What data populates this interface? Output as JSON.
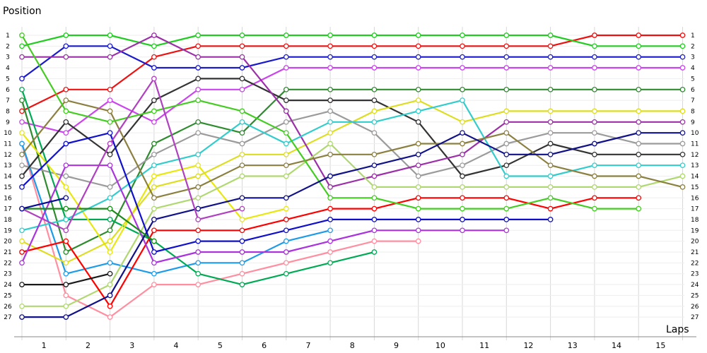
{
  "chart_data": {
    "type": "line",
    "ylabel": "Position",
    "xlabel": "Laps",
    "x_ticks": [
      "1",
      "2",
      "3",
      "4",
      "5",
      "6",
      "7",
      "8",
      "9",
      "10",
      "11",
      "12",
      "13",
      "14",
      "15"
    ],
    "y_ticks": [
      "1",
      "2",
      "3",
      "4",
      "5",
      "6",
      "7",
      "8",
      "9",
      "10",
      "11",
      "12",
      "13",
      "14",
      "15",
      "16",
      "17",
      "18",
      "19",
      "20",
      "21",
      "22",
      "23",
      "24",
      "25",
      "26",
      "27"
    ],
    "x_range": [
      0,
      15.5
    ],
    "y_range": [
      1,
      27
    ],
    "y_inverted": true,
    "grid": true,
    "series": [
      {
        "color": "#ee1111",
        "points": [
          [
            0,
            8
          ],
          [
            1,
            6
          ],
          [
            2,
            6
          ],
          [
            3,
            3
          ],
          [
            4,
            2
          ],
          [
            5,
            2
          ],
          [
            6,
            2
          ],
          [
            7,
            2
          ],
          [
            8,
            2
          ],
          [
            9,
            2
          ],
          [
            10,
            2
          ],
          [
            11,
            2
          ],
          [
            12,
            2
          ],
          [
            13,
            1
          ],
          [
            14,
            1
          ],
          [
            15,
            1
          ]
        ]
      },
      {
        "color": "#22cc22",
        "points": [
          [
            0,
            2
          ],
          [
            1,
            1
          ],
          [
            2,
            1
          ],
          [
            3,
            2
          ],
          [
            4,
            1
          ],
          [
            5,
            1
          ],
          [
            6,
            1
          ],
          [
            7,
            1
          ],
          [
            8,
            1
          ],
          [
            9,
            1
          ],
          [
            10,
            1
          ],
          [
            11,
            1
          ],
          [
            12,
            1
          ],
          [
            13,
            2
          ],
          [
            14,
            2
          ],
          [
            15,
            2
          ]
        ]
      },
      {
        "color": "#1a1acc",
        "points": [
          [
            0,
            5
          ],
          [
            1,
            2
          ],
          [
            2,
            2
          ],
          [
            3,
            4
          ],
          [
            4,
            4
          ],
          [
            5,
            4
          ],
          [
            6,
            3
          ],
          [
            7,
            3
          ],
          [
            8,
            3
          ],
          [
            9,
            3
          ],
          [
            10,
            3
          ],
          [
            11,
            3
          ],
          [
            12,
            3
          ],
          [
            13,
            3
          ],
          [
            14,
            3
          ],
          [
            15,
            3
          ]
        ]
      },
      {
        "color": "#cc44ee",
        "points": [
          [
            0,
            9
          ],
          [
            1,
            10
          ],
          [
            2,
            7
          ],
          [
            3,
            9
          ],
          [
            4,
            6
          ],
          [
            5,
            6
          ],
          [
            6,
            4
          ],
          [
            7,
            4
          ],
          [
            8,
            4
          ],
          [
            9,
            4
          ],
          [
            10,
            4
          ],
          [
            11,
            4
          ],
          [
            12,
            4
          ],
          [
            13,
            4
          ],
          [
            14,
            4
          ],
          [
            15,
            4
          ]
        ]
      },
      {
        "color": "#ff8fa0",
        "points": [
          [
            0,
            11
          ],
          [
            1,
            25
          ],
          [
            2,
            27
          ],
          [
            3,
            24
          ],
          [
            4,
            24
          ],
          [
            5,
            23
          ],
          [
            6,
            22
          ],
          [
            7,
            21
          ],
          [
            8,
            20
          ],
          [
            9,
            20
          ]
        ]
      },
      {
        "color": "#2e8b2e",
        "points": [
          [
            0,
            7
          ],
          [
            1,
            21
          ],
          [
            2,
            19
          ],
          [
            3,
            11
          ],
          [
            4,
            9
          ],
          [
            5,
            10
          ],
          [
            6,
            6
          ],
          [
            7,
            6
          ],
          [
            8,
            6
          ],
          [
            9,
            6
          ],
          [
            10,
            6
          ],
          [
            11,
            6
          ],
          [
            12,
            6
          ],
          [
            13,
            6
          ],
          [
            14,
            6
          ],
          [
            15,
            6
          ]
        ]
      },
      {
        "color": "#1e9be8",
        "points": [
          [
            0,
            11
          ],
          [
            1,
            23
          ],
          [
            2,
            22
          ],
          [
            3,
            23
          ],
          [
            4,
            22
          ],
          [
            5,
            22
          ],
          [
            6,
            20
          ],
          [
            7,
            19
          ]
        ]
      },
      {
        "color": "#9b9b9b",
        "points": [
          [
            0,
            13
          ],
          [
            1,
            14
          ],
          [
            2,
            15
          ],
          [
            3,
            12
          ],
          [
            4,
            10
          ],
          [
            5,
            11
          ],
          [
            6,
            9
          ],
          [
            7,
            8
          ],
          [
            8,
            10
          ],
          [
            9,
            14
          ],
          [
            10,
            13
          ],
          [
            11,
            11
          ],
          [
            12,
            10
          ],
          [
            13,
            10
          ],
          [
            14,
            11
          ],
          [
            15,
            11
          ]
        ]
      },
      {
        "color": "#00aa55",
        "points": [
          [
            0,
            6
          ],
          [
            1,
            18
          ],
          [
            2,
            18
          ],
          [
            3,
            20
          ],
          [
            4,
            23
          ],
          [
            5,
            24
          ],
          [
            6,
            23
          ],
          [
            7,
            22
          ],
          [
            8,
            21
          ]
        ]
      },
      {
        "color": "#333333",
        "points": [
          [
            0,
            14
          ],
          [
            1,
            9
          ],
          [
            2,
            12
          ],
          [
            3,
            7
          ],
          [
            4,
            5
          ],
          [
            5,
            5
          ],
          [
            6,
            7
          ],
          [
            7,
            7
          ],
          [
            8,
            7
          ],
          [
            9,
            9
          ],
          [
            10,
            14
          ],
          [
            11,
            13
          ],
          [
            12,
            11
          ],
          [
            13,
            12
          ],
          [
            14,
            12
          ],
          [
            15,
            12
          ]
        ]
      },
      {
        "color": "#e8e810",
        "points": [
          [
            0,
            10
          ],
          [
            1,
            15
          ],
          [
            2,
            21
          ],
          [
            3,
            14
          ],
          [
            4,
            13
          ],
          [
            5,
            18
          ],
          [
            6,
            17
          ]
        ]
      },
      {
        "color": "#dddd22",
        "points": [
          [
            0,
            20
          ],
          [
            1,
            22
          ],
          [
            2,
            20
          ],
          [
            3,
            15
          ],
          [
            4,
            14
          ],
          [
            5,
            12
          ],
          [
            6,
            12
          ],
          [
            7,
            10
          ],
          [
            8,
            8
          ],
          [
            9,
            7
          ],
          [
            10,
            9
          ],
          [
            11,
            8
          ],
          [
            12,
            8
          ],
          [
            13,
            8
          ],
          [
            14,
            8
          ],
          [
            15,
            8
          ]
        ]
      },
      {
        "color": "#9b30a8",
        "points": [
          [
            0,
            3
          ],
          [
            1,
            3
          ],
          [
            2,
            3
          ],
          [
            3,
            1
          ],
          [
            4,
            3
          ],
          [
            5,
            3
          ],
          [
            6,
            8
          ],
          [
            7,
            15
          ],
          [
            8,
            14
          ],
          [
            9,
            13
          ],
          [
            10,
            12
          ],
          [
            11,
            9
          ],
          [
            12,
            9
          ],
          [
            13,
            9
          ],
          [
            14,
            9
          ],
          [
            15,
            9
          ]
        ]
      },
      {
        "color": "#33cccc",
        "points": [
          [
            0,
            19
          ],
          [
            1,
            18
          ],
          [
            2,
            16
          ],
          [
            3,
            13
          ],
          [
            4,
            12
          ],
          [
            5,
            9
          ],
          [
            6,
            11
          ],
          [
            7,
            9
          ],
          [
            8,
            9
          ],
          [
            9,
            8
          ],
          [
            10,
            7
          ],
          [
            11,
            14
          ],
          [
            12,
            14
          ],
          [
            13,
            13
          ],
          [
            14,
            13
          ],
          [
            15,
            13
          ]
        ]
      },
      {
        "color": "#b0d870",
        "points": [
          [
            0,
            26
          ],
          [
            1,
            26
          ],
          [
            2,
            24
          ],
          [
            3,
            17
          ],
          [
            4,
            16
          ],
          [
            5,
            14
          ],
          [
            6,
            14
          ],
          [
            7,
            11
          ],
          [
            8,
            15
          ],
          [
            9,
            15
          ],
          [
            10,
            15
          ],
          [
            11,
            15
          ],
          [
            12,
            15
          ],
          [
            13,
            15
          ],
          [
            14,
            15
          ],
          [
            15,
            14
          ]
        ]
      },
      {
        "color": "#8b8040",
        "points": [
          [
            0,
            12
          ],
          [
            1,
            7
          ],
          [
            2,
            8
          ],
          [
            3,
            16
          ],
          [
            4,
            15
          ],
          [
            5,
            13
          ],
          [
            6,
            13
          ],
          [
            7,
            12
          ],
          [
            8,
            12
          ],
          [
            9,
            11
          ],
          [
            10,
            11
          ],
          [
            11,
            10
          ],
          [
            12,
            13
          ],
          [
            13,
            14
          ],
          [
            14,
            14
          ],
          [
            15,
            15
          ]
        ]
      },
      {
        "color": "#1010cc",
        "points": [
          [
            0,
            15
          ],
          [
            1,
            11
          ],
          [
            2,
            10
          ],
          [
            3,
            21
          ],
          [
            4,
            20
          ],
          [
            5,
            20
          ],
          [
            6,
            19
          ],
          [
            7,
            18
          ],
          [
            8,
            18
          ],
          [
            9,
            18
          ],
          [
            10,
            18
          ],
          [
            11,
            18
          ],
          [
            12,
            18
          ]
        ]
      },
      {
        "color": "#ff0000",
        "points": [
          [
            0,
            21
          ],
          [
            1,
            20
          ],
          [
            2,
            26
          ],
          [
            3,
            19
          ],
          [
            4,
            19
          ],
          [
            5,
            19
          ],
          [
            6,
            18
          ],
          [
            7,
            17
          ],
          [
            8,
            17
          ],
          [
            9,
            16
          ],
          [
            10,
            16
          ],
          [
            11,
            16
          ],
          [
            12,
            17
          ],
          [
            13,
            16
          ],
          [
            14,
            16
          ]
        ]
      },
      {
        "color": "#44cc22",
        "points": [
          [
            0,
            1
          ],
          [
            1,
            8
          ],
          [
            2,
            9
          ],
          [
            3,
            8
          ],
          [
            4,
            7
          ],
          [
            5,
            8
          ],
          [
            6,
            10
          ],
          [
            7,
            16
          ],
          [
            8,
            16
          ],
          [
            9,
            17
          ],
          [
            10,
            17
          ],
          [
            11,
            17
          ],
          [
            12,
            16
          ],
          [
            13,
            17
          ],
          [
            14,
            17
          ]
        ]
      },
      {
        "color": "#aa33dd",
        "points": [
          [
            0,
            22
          ],
          [
            1,
            13
          ],
          [
            2,
            13
          ],
          [
            3,
            22
          ],
          [
            4,
            21
          ],
          [
            5,
            21
          ],
          [
            6,
            21
          ],
          [
            7,
            20
          ],
          [
            8,
            19
          ],
          [
            9,
            19
          ],
          [
            10,
            19
          ],
          [
            11,
            19
          ]
        ]
      },
      {
        "color": "#111188",
        "points": [
          [
            0,
            27
          ],
          [
            1,
            27
          ],
          [
            2,
            25
          ],
          [
            3,
            18
          ],
          [
            4,
            17
          ],
          [
            5,
            16
          ],
          [
            6,
            16
          ],
          [
            7,
            14
          ],
          [
            8,
            13
          ],
          [
            9,
            12
          ],
          [
            10,
            10
          ],
          [
            11,
            12
          ],
          [
            12,
            12
          ],
          [
            13,
            11
          ],
          [
            14,
            10
          ],
          [
            15,
            10
          ]
        ]
      },
      {
        "color": "#1a8a1a",
        "points": [
          [
            0,
            17
          ],
          [
            1,
            17
          ],
          [
            2,
            17
          ],
          [
            3,
            20
          ]
        ]
      },
      {
        "color": "#b040c0",
        "points": [
          [
            0,
            17
          ],
          [
            1,
            19
          ],
          [
            2,
            11
          ],
          [
            3,
            5
          ],
          [
            4,
            18
          ],
          [
            5,
            17
          ]
        ]
      },
      {
        "color": "#1a1a1a",
        "points": [
          [
            0,
            24
          ],
          [
            1,
            24
          ],
          [
            2,
            23
          ]
        ]
      },
      {
        "color": "#0a0a99",
        "points": [
          [
            0,
            17
          ],
          [
            1,
            16
          ]
        ]
      }
    ]
  }
}
